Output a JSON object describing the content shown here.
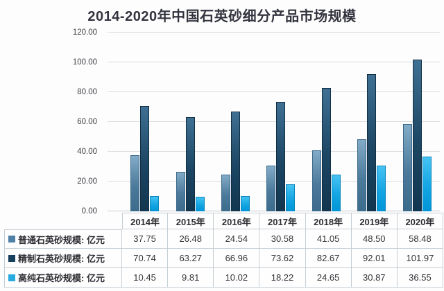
{
  "title": "2014-2020年中国石英砂细分产品市场规模",
  "chart_data": {
    "type": "bar",
    "title": "2014-2020年中国石英砂细分产品市场规模",
    "categories": [
      "2014年",
      "2015年",
      "2016年",
      "2017年",
      "2018年",
      "2019年",
      "2020年"
    ],
    "series": [
      {
        "name": "普通石英砂规模: 亿元",
        "color": "#4f81a8",
        "values": [
          37.75,
          26.48,
          24.54,
          30.58,
          41.05,
          48.5,
          58.48
        ]
      },
      {
        "name": "精制石英砂规模: 亿元",
        "color": "#17405c",
        "values": [
          70.74,
          63.27,
          66.96,
          73.62,
          82.67,
          92.01,
          101.97
        ]
      },
      {
        "name": "高纯石英砂规模: 亿元",
        "color": "#29abe2",
        "values": [
          10.45,
          9.81,
          10.02,
          18.22,
          24.65,
          30.87,
          36.55
        ]
      }
    ],
    "xlabel": "",
    "ylabel": "",
    "ylim": [
      0,
      120
    ],
    "ytick_step": 20,
    "ytick_labels": [
      "0.00",
      "20.00",
      "40.00",
      "60.00",
      "80.00",
      "100.00",
      "120.00"
    ],
    "grid": true,
    "legend_position": "table-left-column"
  },
  "table": {
    "header": [
      "2014年",
      "2015年",
      "2016年",
      "2017年",
      "2018年",
      "2019年",
      "2020年"
    ],
    "rows": [
      {
        "label": "普通石英砂规模: 亿元",
        "swatch_color": "#4f81a8",
        "values": [
          "37.75",
          "26.48",
          "24.54",
          "30.58",
          "41.05",
          "48.50",
          "58.48"
        ]
      },
      {
        "label": "精制石英砂规模: 亿元",
        "swatch_color": "#17405c",
        "values": [
          "70.74",
          "63.27",
          "66.96",
          "73.62",
          "82.67",
          "92.01",
          "101.97"
        ]
      },
      {
        "label": "高纯石英砂规模: 亿元",
        "swatch_color": "#29abe2",
        "values": [
          "10.45",
          "9.81",
          "10.02",
          "18.22",
          "24.65",
          "30.87",
          "36.55"
        ]
      }
    ]
  }
}
